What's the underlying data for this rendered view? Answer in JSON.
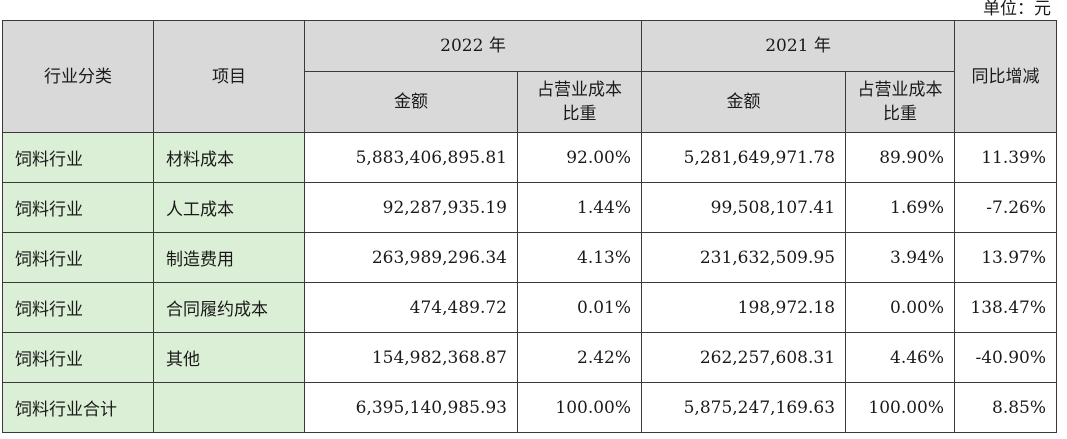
{
  "unit_note": "单位：元",
  "header": {
    "industry": "行业分类",
    "item": "项目",
    "year_2022": "2022 年",
    "year_2021": "2021 年",
    "yoy": "同比增减",
    "amount_2022": "金额",
    "ratio_2022": "占营业成本比重",
    "amount_2021": "金额",
    "ratio_2021": "占营业成本比重"
  },
  "rows": [
    {
      "industry": "饲料行业",
      "item": "材料成本",
      "amount_2022": "5,883,406,895.81",
      "ratio_2022": "92.00%",
      "amount_2021": "5,281,649,971.78",
      "ratio_2021": "89.90%",
      "yoy": "11.39%"
    },
    {
      "industry": "饲料行业",
      "item": "人工成本",
      "amount_2022": "92,287,935.19",
      "ratio_2022": "1.44%",
      "amount_2021": "99,508,107.41",
      "ratio_2021": "1.69%",
      "yoy": "-7.26%"
    },
    {
      "industry": "饲料行业",
      "item": "制造费用",
      "amount_2022": "263,989,296.34",
      "ratio_2022": "4.13%",
      "amount_2021": "231,632,509.95",
      "ratio_2021": "3.94%",
      "yoy": "13.97%"
    },
    {
      "industry": "饲料行业",
      "item": "合同履约成本",
      "amount_2022": "474,489.72",
      "ratio_2022": "0.01%",
      "amount_2021": "198,972.18",
      "ratio_2021": "0.00%",
      "yoy": "138.47%"
    },
    {
      "industry": "饲料行业",
      "item": "其他",
      "amount_2022": "154,982,368.87",
      "ratio_2022": "2.42%",
      "amount_2021": "262,257,608.31",
      "ratio_2021": "4.46%",
      "yoy": "-40.90%"
    },
    {
      "industry": "饲料行业合计",
      "item": "",
      "amount_2022": "6,395,140,985.93",
      "ratio_2022": "100.00%",
      "amount_2021": "5,875,247,169.63",
      "ratio_2021": "100.00%",
      "yoy": "8.85%"
    }
  ]
}
